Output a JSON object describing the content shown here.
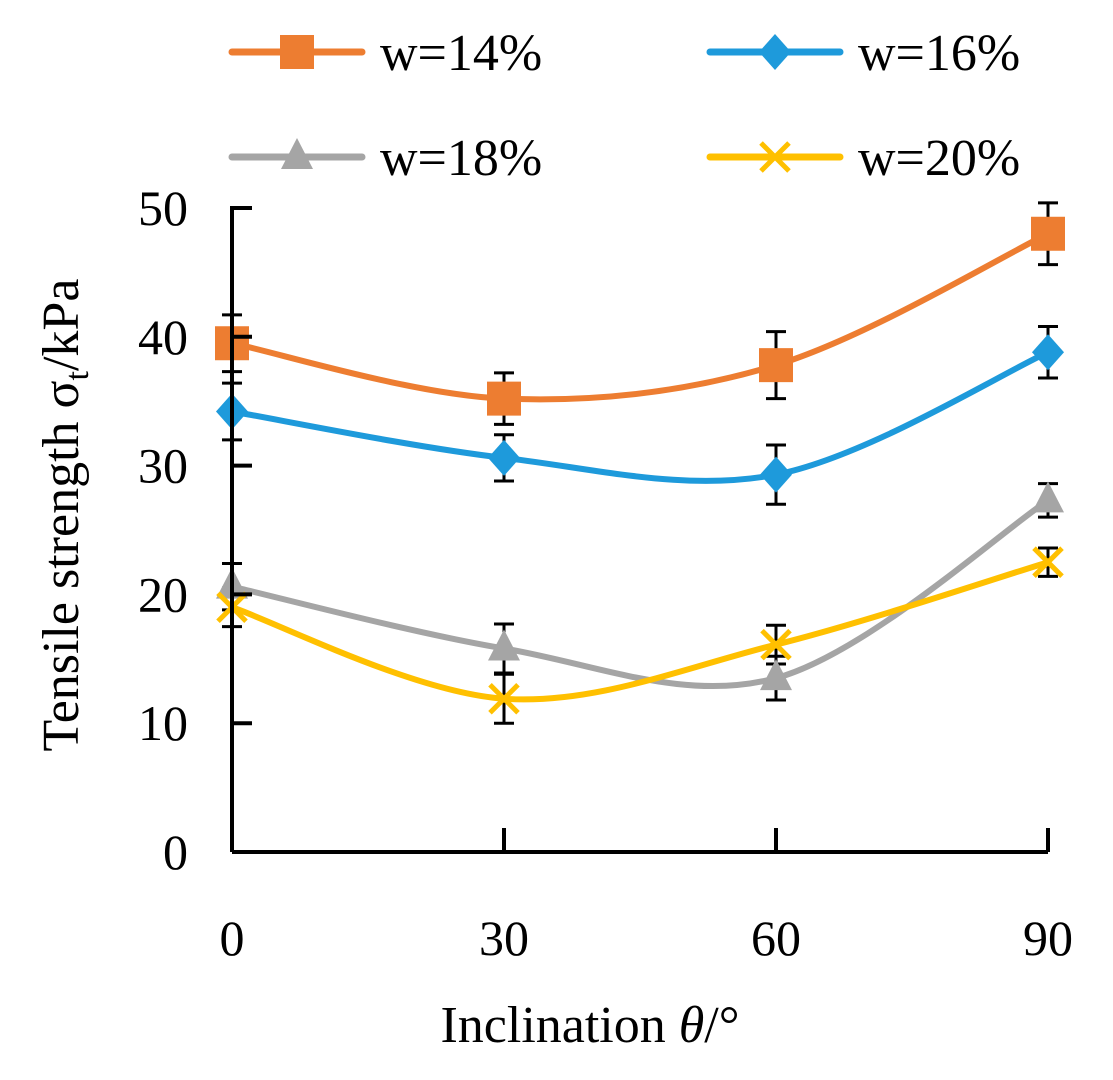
{
  "chart_data": {
    "type": "line",
    "smooth": true,
    "x": [
      0,
      30,
      60,
      90
    ],
    "xlim": [
      0,
      90
    ],
    "ylim": [
      0,
      50
    ],
    "x_ticks": [
      "0",
      "30",
      "60",
      "90"
    ],
    "y_ticks": [
      "0",
      "10",
      "20",
      "30",
      "40",
      "50"
    ],
    "xlabel": {
      "text": "Inclination ",
      "symbol": "θ",
      "unit": "/°"
    },
    "ylabel": {
      "text": "Tensile strength σ",
      "subscript": "t",
      "unit": "/kPa"
    },
    "legend_position": "top",
    "series": [
      {
        "name": "w=14%",
        "color": "#ED7D31",
        "marker": "square",
        "values": [
          39.5,
          35.2,
          37.8,
          48.0
        ],
        "errors": [
          2.2,
          2.0,
          2.6,
          2.4
        ]
      },
      {
        "name": "w=16%",
        "color": "#1E9ADB",
        "marker": "diamond",
        "values": [
          34.2,
          30.6,
          29.3,
          38.8
        ],
        "errors": [
          2.2,
          1.8,
          2.3,
          2.0
        ]
      },
      {
        "name": "w=18%",
        "color": "#A5A5A5",
        "marker": "triangle",
        "values": [
          20.6,
          15.8,
          13.5,
          27.3
        ],
        "errors": [
          1.8,
          1.9,
          1.7,
          1.3
        ]
      },
      {
        "name": "w=20%",
        "color": "#FFC000",
        "marker": "cross",
        "values": [
          19.0,
          11.9,
          16.1,
          22.5
        ],
        "errors": [
          1.5,
          1.9,
          1.5,
          1.1
        ]
      }
    ]
  }
}
